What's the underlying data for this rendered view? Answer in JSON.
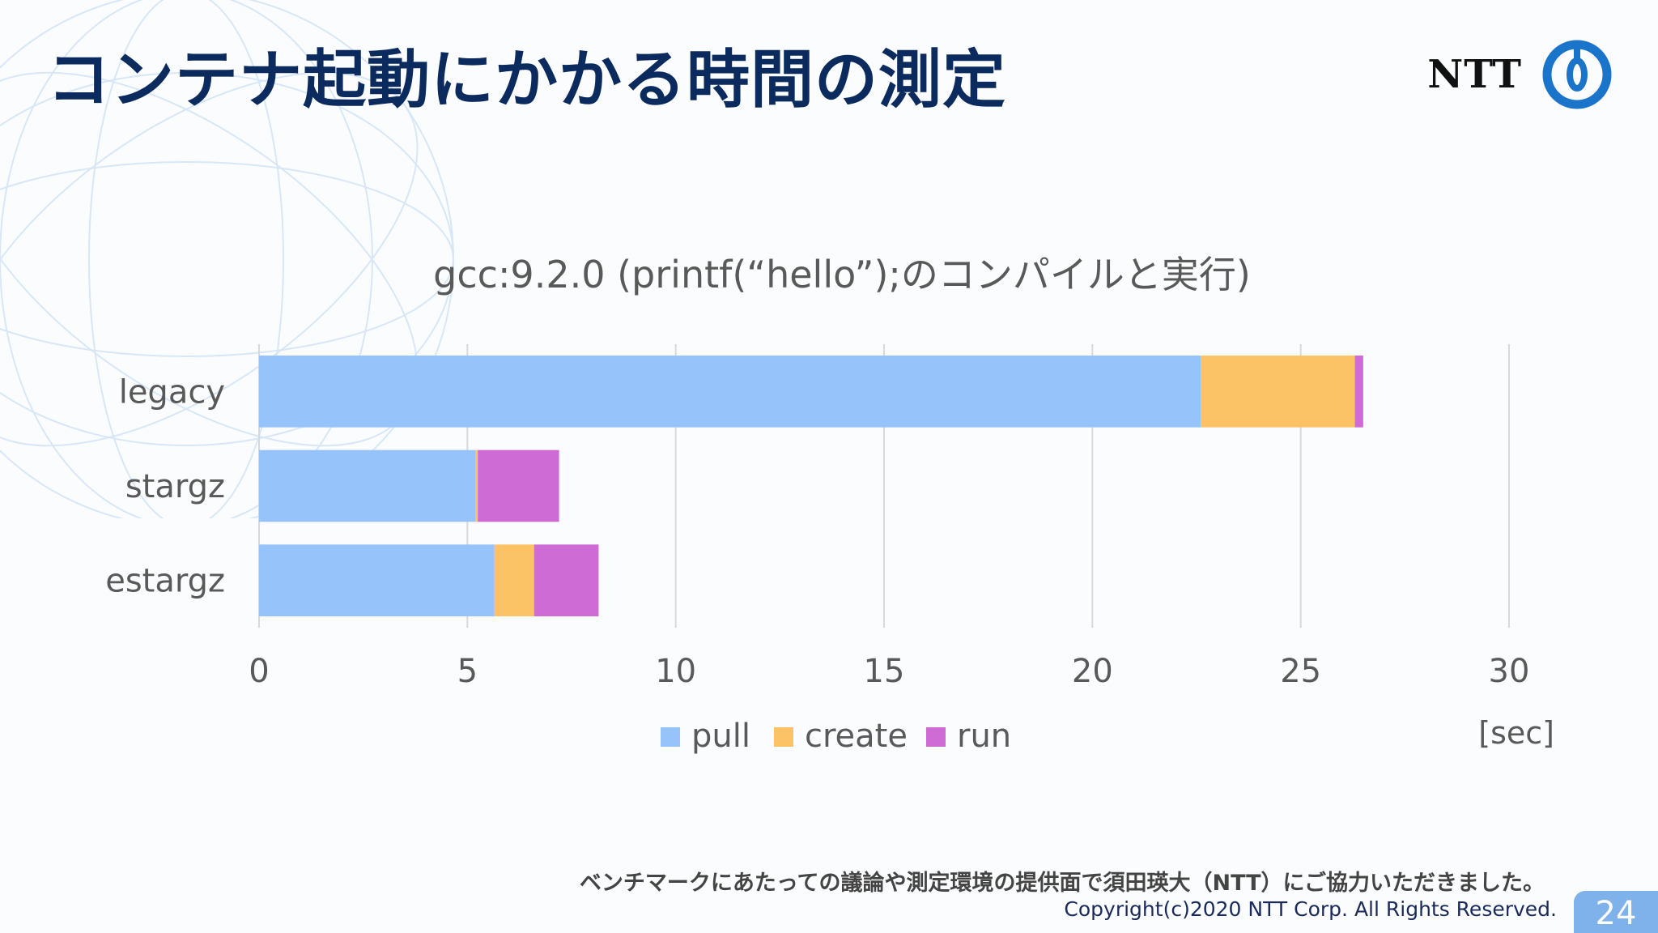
{
  "slide": {
    "title": "コンテナ起動にかかる時間の測定",
    "logo_text": "NTT",
    "footnote": "ベンチマークにあたっての議論や測定環境の提供面で須田瑛大（NTT）にご協力いただきました。",
    "copyright": "Copyright(c)2020 NTT Corp. All Rights Reserved.",
    "page_number": "24"
  },
  "colors": {
    "title": "#0b2a5e",
    "logo_ring": "#1a74c9",
    "pull": "#96c3fa",
    "create": "#fbc266",
    "run": "#cf6bd4",
    "grid": "#d9d9d9",
    "axis_text": "#595959"
  },
  "chart_data": {
    "type": "bar",
    "orientation": "horizontal",
    "stacked": true,
    "title": "gcc:9.2.0 (printf(“hello”);のコンパイルと実行)",
    "unit_label": "[sec]",
    "categories": [
      "legacy",
      "stargz",
      "estargz"
    ],
    "series": [
      {
        "name": "pull",
        "color": "#96c3fa",
        "values": [
          22.6,
          5.2,
          5.65
        ]
      },
      {
        "name": "create",
        "color": "#fbc266",
        "values": [
          3.7,
          0.05,
          0.95
        ]
      },
      {
        "name": "run",
        "color": "#cf6bd4",
        "values": [
          0.2,
          1.95,
          1.55
        ]
      }
    ],
    "xlim": [
      0,
      30
    ],
    "xticks": [
      "0",
      "5",
      "10",
      "15",
      "20",
      "25",
      "30"
    ],
    "grid": true,
    "legend_position": "bottom"
  }
}
